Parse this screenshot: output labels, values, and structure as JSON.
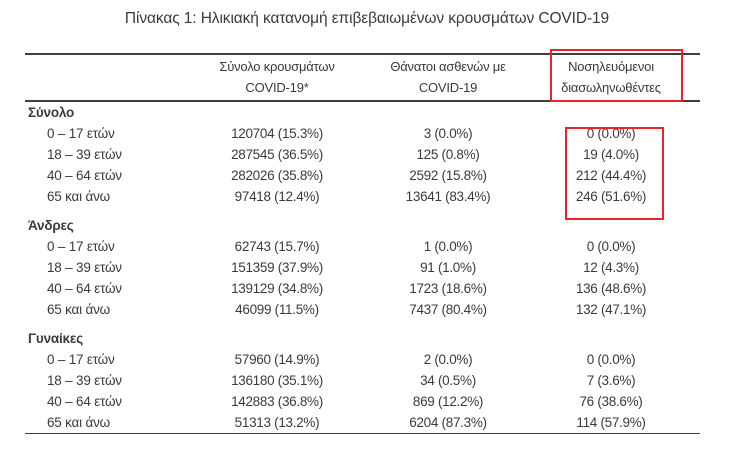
{
  "title": "Πίνακας 1: Ηλικιακή κατανομή επιβεβαιωμένων κρουσμάτων COVID-19",
  "highlight_color": "#e62529",
  "table": {
    "columns": {
      "cases": "Σύνολο κρουσμάτων\nCOVID-19*",
      "deaths": "Θάνατοι ασθενών με\nCOVID-19",
      "intubated": "Νοσηλευόμενοι\nδιασωληνωθέντες"
    },
    "sections": [
      {
        "name": "Σύνολο",
        "rows": [
          {
            "label": "0 – 17 ετών",
            "cases": "120704 (15.3%)",
            "deaths": "3 (0.0%)",
            "intubated": "0 (0.0%)"
          },
          {
            "label": "18 – 39 ετών",
            "cases": "287545 (36.5%)",
            "deaths": "125 (0.8%)",
            "intubated": "19 (4.0%)"
          },
          {
            "label": "40 – 64 ετών",
            "cases": "282026 (35.8%)",
            "deaths": "2592 (15.8%)",
            "intubated": "212 (44.4%)"
          },
          {
            "label": "65 και άνω",
            "cases": "97418 (12.4%)",
            "deaths": "13641 (83.4%)",
            "intubated": "246 (51.6%)"
          }
        ]
      },
      {
        "name": "Άνδρες",
        "rows": [
          {
            "label": "0 – 17 ετών",
            "cases": "62743 (15.7%)",
            "deaths": "1 (0.0%)",
            "intubated": "0 (0.0%)"
          },
          {
            "label": "18 – 39 ετών",
            "cases": "151359 (37.9%)",
            "deaths": "91 (1.0%)",
            "intubated": "12 (4.3%)"
          },
          {
            "label": "40 – 64 ετών",
            "cases": "139129 (34.8%)",
            "deaths": "1723 (18.6%)",
            "intubated": "136 (48.6%)"
          },
          {
            "label": "65 και άνω",
            "cases": "46099 (11.5%)",
            "deaths": "7437 (80.4%)",
            "intubated": "132 (47.1%)"
          }
        ]
      },
      {
        "name": "Γυναίκες",
        "rows": [
          {
            "label": "0 – 17 ετών",
            "cases": "57960 (14.9%)",
            "deaths": "2 (0.0%)",
            "intubated": "0 (0.0%)"
          },
          {
            "label": "18 – 39 ετών",
            "cases": "136180 (35.1%)",
            "deaths": "34 (0.5%)",
            "intubated": "7 (3.6%)"
          },
          {
            "label": "40 – 64 ετών",
            "cases": "142883 (36.8%)",
            "deaths": "869 (12.2%)",
            "intubated": "76 (38.6%)"
          },
          {
            "label": "65 και άνω",
            "cases": "51313 (13.2%)",
            "deaths": "6204 (87.3%)",
            "intubated": "114 (57.9%)"
          }
        ]
      }
    ]
  }
}
